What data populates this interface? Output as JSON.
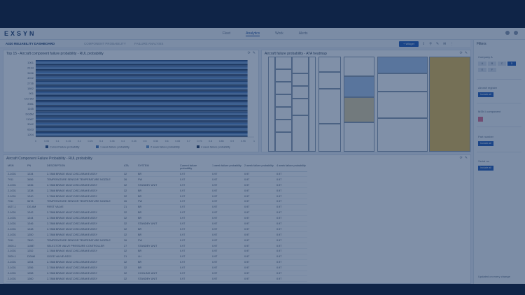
{
  "app": {
    "logo": "EXSYN",
    "nav": [
      "Fleet",
      "Analytics",
      "Work",
      "Alerts"
    ],
    "active_nav": "Analytics"
  },
  "subbar": {
    "crumb": "A320 RELIABILITY DASHBOARD",
    "crumb2": "COMPONENT PROBABILITY",
    "crumb3": "FAILURE ANALYSIS",
    "widget_button": "+ Widget"
  },
  "bar_panel": {
    "title": "Top 15 - Aircraft component failure probability - RUL probability"
  },
  "heat_panel": {
    "title": "Aircraft failure probability - ATA heatmap"
  },
  "table_panel": {
    "title": "Aircraft Component Failure Probability - RUL probability"
  },
  "chart_data": {
    "type": "bar",
    "orientation": "horizontal",
    "categories": [
      "1001",
      "2134",
      "3456",
      "4012",
      "2736",
      "1892",
      "901",
      "DG-6M",
      "3981",
      "1165",
      "DG6M",
      "11087",
      "3042",
      "6623",
      "1204"
    ],
    "series": [
      {
        "name": "Current failure probability",
        "values": [
          0.97,
          0.97,
          0.97,
          0.97,
          0.97,
          0.97,
          0.97,
          0.97,
          0.97,
          0.97,
          0.97,
          0.97,
          0.97,
          0.97,
          0.97
        ]
      },
      {
        "name": "1 week failure probability",
        "values": [
          0.97,
          0.97,
          0.97,
          0.97,
          0.97,
          0.97,
          0.97,
          0.97,
          0.97,
          0.97,
          0.97,
          0.97,
          0.97,
          0.97,
          0.97
        ]
      },
      {
        "name": "2 week failure probability",
        "values": [
          0.97,
          0.97,
          0.97,
          0.97,
          0.97,
          0.97,
          0.97,
          0.97,
          0.97,
          0.97,
          0.97,
          0.97,
          0.97,
          0.97,
          0.97
        ]
      },
      {
        "name": "4 week failure probability",
        "values": [
          0.97,
          0.97,
          0.97,
          0.97,
          0.97,
          0.97,
          0.97,
          0.97,
          0.97,
          0.97,
          0.97,
          0.97,
          0.97,
          0.97,
          0.97
        ]
      }
    ],
    "xlim": [
      0,
      1
    ],
    "xticks": [
      "0",
      "0.05",
      "0.1",
      "0.15",
      "0.2",
      "0.25",
      "0.3",
      "0.35",
      "0.4",
      "0.45",
      "0.5",
      "0.55",
      "0.6",
      "0.65",
      "0.7",
      "0.75",
      "0.8",
      "0.85",
      "0.9",
      "0.95",
      "1"
    ],
    "colors": [
      "#2a4c7e",
      "#4a79b8",
      "#6a97cc",
      "#20385e"
    ],
    "legend_position": "bottom"
  },
  "table": {
    "headers": [
      "MSN",
      "PN",
      "DESCRIPTION",
      "ATA",
      "SYSTEM",
      "Current failure probability",
      "1 week failure probability",
      "2 week failure probability",
      "4 week failure probability"
    ],
    "rows": [
      [
        "2-1001",
        "1234",
        "2-7888 BRAKE MULT-DISC-BRAKE ASSY",
        "32",
        "BR",
        "0.97",
        "0.97",
        "0.97",
        "0.97"
      ],
      [
        "7911",
        "3456",
        "TEMPERATURE SENSOR TEMPERATURE NOZZLE",
        "26",
        "FW",
        "0.97",
        "0.97",
        "0.97",
        "0.97"
      ],
      [
        "2-1001",
        "1236",
        "2-7888 BRAKE MULT-DISC-BRAKE ASSY",
        "32",
        "STANDBY UNIT",
        "0.97",
        "0.97",
        "0.97",
        "0.97"
      ],
      [
        "2-1001",
        "1238",
        "2-7888 BRAKE MULT-DISC-BRAKE ASSY",
        "32",
        "BR",
        "0.97",
        "0.97",
        "0.97",
        "0.97"
      ],
      [
        "2-1001",
        "1240",
        "2-7888 BRAKE MULT-DISC-BRAKE ASSY",
        "32",
        "BR",
        "0.97",
        "0.97",
        "0.97",
        "0.97"
      ],
      [
        "7911",
        "5678",
        "TEMPERATURE SENSOR TEMPERATURE NOZZLE",
        "26",
        "FW",
        "0.97",
        "0.97",
        "0.97",
        "0.97"
      ],
      [
        "4027-1",
        "DG-6M",
        "FIRST VALVE",
        "21",
        "BR",
        "0.97",
        "0.97",
        "0.97",
        "0.97"
      ],
      [
        "2-1001",
        "1242",
        "2-7888 BRAKE MULT-DISC-BRAKE ASSY",
        "32",
        "BR",
        "0.97",
        "0.97",
        "0.97",
        "0.97"
      ],
      [
        "2-1001",
        "1244",
        "2-7888 BRAKE MULT-DISC-BRAKE ASSY",
        "32",
        "BR",
        "0.97",
        "0.97",
        "0.97",
        "0.97"
      ],
      [
        "2-1001",
        "1246",
        "2-7888 BRAKE MULT-DISC-BRAKE ASSY",
        "32",
        "STANDBY UNIT",
        "0.97",
        "0.97",
        "0.97",
        "0.97"
      ],
      [
        "2-1001",
        "1248",
        "2-7888 BRAKE MULT-DISC-BRAKE ASSY",
        "32",
        "BR",
        "0.97",
        "0.97",
        "0.97",
        "0.97"
      ],
      [
        "2-1001",
        "1250",
        "2-7888 BRAKE MULT-DISC-BRAKE ASSY",
        "32",
        "BR",
        "0.97",
        "0.97",
        "0.97",
        "0.97"
      ],
      [
        "7911",
        "7890",
        "TEMPERATURE SENSOR TEMPERATURE NOZZLE",
        "26",
        "FW",
        "0.97",
        "0.97",
        "0.97",
        "0.97"
      ],
      [
        "2000-1",
        "11087",
        "SELECTOR VALVE PRESSURE CONTROLLER",
        "27",
        "STANDBY UNIT",
        "0.97",
        "0.97",
        "0.97",
        "0.97"
      ],
      [
        "2-1001",
        "1252",
        "2-7888 BRAKE MULT-DISC-BRAKE ASSY",
        "32",
        "BR",
        "0.97",
        "0.97",
        "0.97",
        "0.97"
      ],
      [
        "2000-1",
        "DG6M",
        "GOOD VALVE ASSY",
        "21",
        "LH",
        "0.97",
        "0.97",
        "0.97",
        "0.97"
      ],
      [
        "2-1001",
        "1254",
        "2-7888 BRAKE MULT-DISC-BRAKE ASSY",
        "32",
        "BR",
        "0.97",
        "0.97",
        "0.97",
        "0.97"
      ],
      [
        "2-1001",
        "1256",
        "2-7888 BRAKE MULT-DISC-BRAKE ASSY",
        "32",
        "BR",
        "0.97",
        "0.97",
        "0.97",
        "0.97"
      ],
      [
        "2-1001",
        "1258",
        "2-7888 BRAKE MULT-DISC-BRAKE ASSY",
        "32",
        "COOLING UNIT",
        "0.97",
        "0.97",
        "0.97",
        "0.97"
      ],
      [
        "2-1001",
        "1260",
        "2-7888 BRAKE MULT-DISC-BRAKE ASSY",
        "32",
        "STANDBY UNIT",
        "0.97",
        "0.97",
        "0.97",
        "0.97"
      ],
      [
        "2-1001",
        "1262",
        "2-7888 BRAKE MULT-DISC-BRAKE ASSY",
        "32",
        "BR",
        "0.97",
        "0.97",
        "0.97",
        "0.97"
      ],
      [
        "2-1001",
        "1264",
        "2-7888 BRAKE MULT-DISC-BRAKE ASSY",
        "32",
        "BR",
        "0.97",
        "0.97",
        "0.97",
        "0.97"
      ],
      [
        "2-1001",
        "1266",
        "2-7888 BRAKE MULT-DISC-BRAKE ASSY",
        "32",
        "BR",
        "0.97",
        "0.97",
        "0.97",
        "0.97"
      ]
    ]
  },
  "sidebar": {
    "title": "Filters",
    "company_label": "Company A",
    "chips": [
      "A",
      "B",
      "C",
      "D",
      "E",
      "F"
    ],
    "section1": "Aircraft register",
    "section2": "MSN / component",
    "section3": "Part number",
    "section4": "Serial no",
    "include_label": "Include all",
    "bottom_text": "Updated on every change"
  },
  "heatmap": {
    "colors": {
      "blue": "#a9c4e6",
      "tan": "#e1cfa0",
      "gold": "#e6b94a",
      "white": "#ffffff"
    }
  }
}
